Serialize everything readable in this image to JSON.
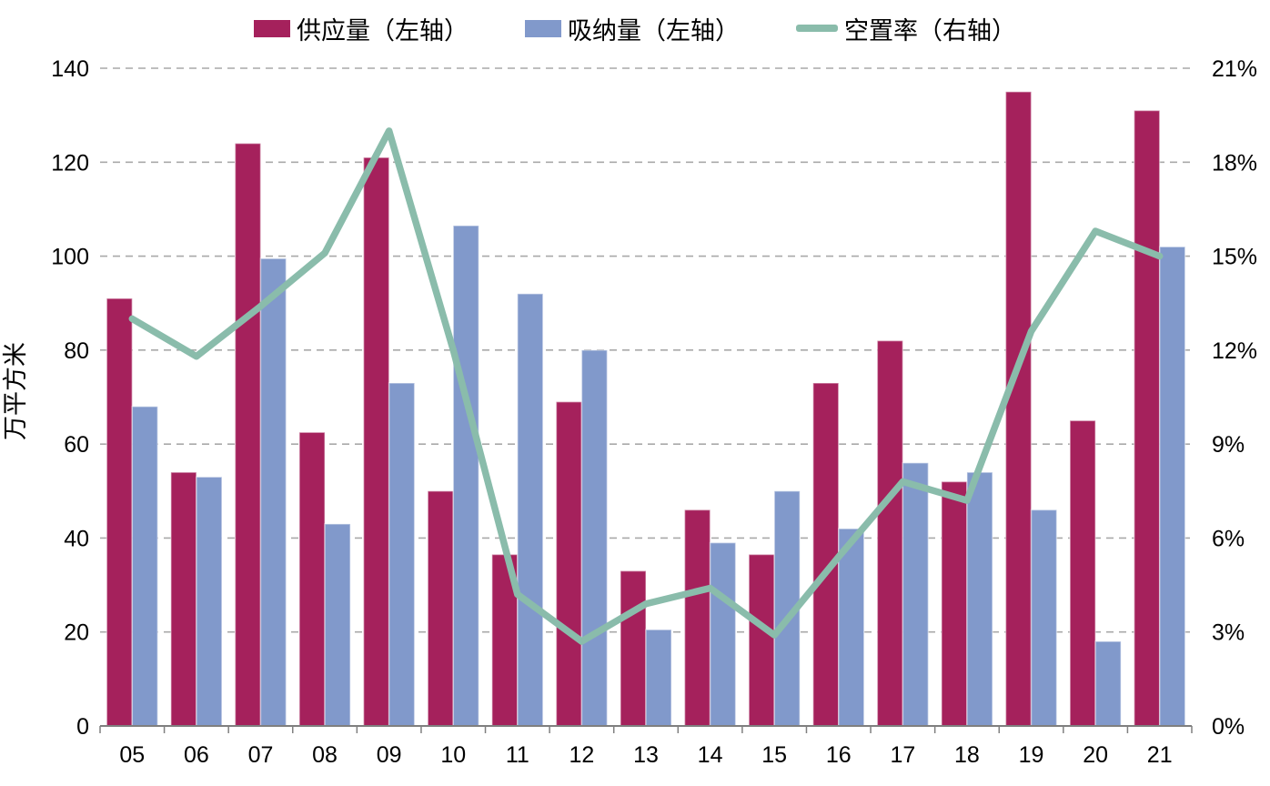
{
  "legend": [
    {
      "label": "供应量（左轴）",
      "color": "#A5215C",
      "swatch": "rect"
    },
    {
      "label": "吸纳量（左轴）",
      "color": "#8199CB",
      "swatch": "rect"
    },
    {
      "label": "空置率（右轴）",
      "color": "#8ABCAB",
      "swatch": "line"
    }
  ],
  "chart_data": {
    "type": "bar+line combo",
    "categories": [
      "05",
      "06",
      "07",
      "08",
      "09",
      "10",
      "11",
      "12",
      "13",
      "14",
      "15",
      "16",
      "17",
      "18",
      "19",
      "20",
      "21"
    ],
    "series": [
      {
        "name": "供应量（左轴）",
        "type": "bar",
        "axis": "left",
        "color": "#A5215C",
        "values": [
          91,
          54,
          124,
          62.5,
          121,
          50,
          36.5,
          69,
          33,
          46,
          36.5,
          73,
          82,
          52,
          135,
          65,
          131
        ]
      },
      {
        "name": "吸纳量（左轴）",
        "type": "bar",
        "axis": "left",
        "color": "#8199CB",
        "values": [
          68,
          53,
          99.5,
          43,
          73,
          106.5,
          92,
          80,
          20.5,
          39,
          50,
          42,
          56,
          54,
          46,
          18,
          102
        ]
      },
      {
        "name": "空置率（右轴）",
        "type": "line",
        "axis": "right",
        "color": "#8ABCAB",
        "values": [
          13.0,
          11.8,
          13.4,
          15.1,
          19.0,
          12.0,
          4.2,
          2.7,
          3.9,
          4.4,
          2.9,
          5.4,
          7.8,
          7.2,
          12.6,
          15.8,
          15.0
        ]
      }
    ],
    "left_axis": {
      "title": "万平方米",
      "min": 0,
      "max": 140,
      "ticks": [
        0,
        20,
        40,
        60,
        80,
        100,
        120,
        140
      ]
    },
    "right_axis": {
      "min": 0,
      "max": 21,
      "tick_labels": [
        "0%",
        "3%",
        "6%",
        "9%",
        "12%",
        "15%",
        "18%",
        "21%"
      ]
    },
    "grid": {
      "style": "dashed horizontal",
      "color": "#A9A9A9"
    },
    "axis_line_color": "#7F7F7F",
    "background": "#FFFFFF",
    "legend_position": "top center"
  }
}
